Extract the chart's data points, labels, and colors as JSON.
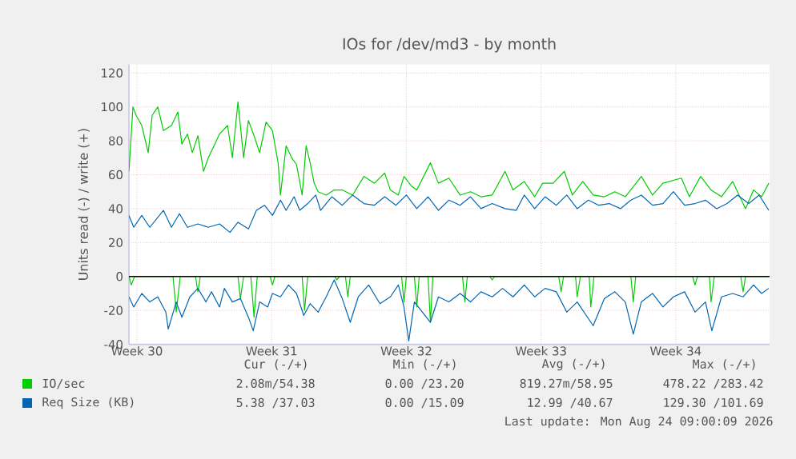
{
  "chart_data": {
    "type": "line",
    "title": "IOs for /dev/md3 - by month",
    "ylabel": "Units read (-) / write (+)",
    "xlim": [
      "2026-07-21T00:00",
      "2026-08-23T07:00"
    ],
    "ylim": [
      -40,
      125
    ],
    "xticks": [
      {
        "value": "2026-07-21T10:00",
        "label": "Week 30"
      },
      {
        "value": "2026-07-28T10:00",
        "label": "Week 31"
      },
      {
        "value": "2026-08-04T10:00",
        "label": "Week 32"
      },
      {
        "value": "2026-08-11T10:00",
        "label": "Week 33"
      },
      {
        "value": "2026-08-18T10:00",
        "label": "Week 34"
      }
    ],
    "yticks": [
      -40,
      -20,
      0,
      20,
      40,
      60,
      80,
      100,
      120
    ],
    "grid": true,
    "legend": "bottom",
    "line_style": "solid",
    "ref_lines": [
      {
        "axis": "y",
        "value": 0,
        "color": "#000000"
      }
    ],
    "series": [
      {
        "name": "IO/sec",
        "color": "#00cc00",
        "x": [
          "2026-07-21T00:00",
          "2026-07-21T05:00",
          "2026-07-21T09:00",
          "2026-07-21T16:00",
          "2026-07-22T00:00",
          "2026-07-22T05:00",
          "2026-07-22T12:00",
          "2026-07-22T19:00",
          "2026-07-23T05:00",
          "2026-07-23T13:00",
          "2026-07-23T18:00",
          "2026-07-24T01:00",
          "2026-07-24T07:00",
          "2026-07-24T14:00",
          "2026-07-24T21:00",
          "2026-07-25T03:00",
          "2026-07-25T10:00",
          "2026-07-25T17:00",
          "2026-07-26T03:00",
          "2026-07-26T09:00",
          "2026-07-26T16:00",
          "2026-07-26T23:00",
          "2026-07-27T05:00",
          "2026-07-27T12:00",
          "2026-07-27T19:00",
          "2026-07-28T03:00",
          "2026-07-28T11:00",
          "2026-07-28T18:00",
          "2026-07-28T21:00",
          "2026-07-29T04:00",
          "2026-07-29T11:00",
          "2026-07-29T17:00",
          "2026-07-30T00:00",
          "2026-07-30T05:00",
          "2026-07-30T10:00",
          "2026-07-30T15:00",
          "2026-07-30T20:00",
          "2026-07-31T06:00",
          "2026-07-31T16:00",
          "2026-08-01T02:00",
          "2026-08-01T15:00",
          "2026-08-02T05:00",
          "2026-08-02T18:00",
          "2026-08-03T07:00",
          "2026-08-03T14:00",
          "2026-08-04T00:00",
          "2026-08-04T07:00",
          "2026-08-04T17:00",
          "2026-08-04T23:00",
          "2026-08-05T16:00",
          "2026-08-06T02:00",
          "2026-08-06T15:00",
          "2026-08-07T05:00",
          "2026-08-07T18:00",
          "2026-08-08T07:00",
          "2026-08-08T21:00",
          "2026-08-09T13:00",
          "2026-08-09T23:00",
          "2026-08-10T13:00",
          "2026-08-11T02:00",
          "2026-08-11T12:00",
          "2026-08-12T01:00",
          "2026-08-12T15:00",
          "2026-08-13T01:00",
          "2026-08-13T14:00",
          "2026-08-14T03:00",
          "2026-08-14T17:00",
          "2026-08-15T06:00",
          "2026-08-15T19:00",
          "2026-08-16T15:00",
          "2026-08-17T05:00",
          "2026-08-17T18:00",
          "2026-08-18T17:00",
          "2026-08-19T03:00",
          "2026-08-19T17:00",
          "2026-08-20T06:00",
          "2026-08-20T19:00",
          "2026-08-21T09:00",
          "2026-08-22T01:00",
          "2026-08-22T11:00",
          "2026-08-22T21:00",
          "2026-08-23T06:00"
        ],
        "values": [
          62,
          100,
          95,
          89,
          73,
          95,
          100,
          86,
          89,
          97,
          78,
          84,
          73,
          83,
          62,
          70,
          77,
          84,
          89,
          70,
          103,
          70,
          92,
          83,
          73,
          91,
          86,
          67,
          48,
          77,
          70,
          66,
          48,
          77,
          67,
          55,
          50,
          48,
          51,
          51,
          48,
          59,
          55,
          61,
          51,
          48,
          59,
          53,
          51,
          67,
          55,
          58,
          48,
          50,
          47,
          48,
          62,
          51,
          56,
          47,
          55,
          55,
          62,
          48,
          56,
          48,
          47,
          50,
          47,
          59,
          48,
          55,
          58,
          47,
          59,
          51,
          47,
          56,
          40,
          51,
          47,
          55
        ]
      },
      {
        "color": "#00cc00",
        "x": [
          "2026-07-21T00:00",
          "2026-07-21T03:00",
          "2026-07-21T07:00",
          "2026-07-23T07:00",
          "2026-07-23T11:00",
          "2026-07-23T16:00",
          "2026-07-24T11:00",
          "2026-07-24T14:00",
          "2026-07-24T17:00",
          "2026-07-26T16:00",
          "2026-07-26T19:00",
          "2026-07-26T23:00",
          "2026-07-27T08:00",
          "2026-07-27T12:00",
          "2026-07-27T16:00",
          "2026-07-28T08:00",
          "2026-07-28T11:00",
          "2026-07-28T14:00",
          "2026-07-30T00:00",
          "2026-07-30T03:00",
          "2026-07-30T07:00",
          "2026-07-31T17:00",
          "2026-07-31T19:00",
          "2026-07-31T23:00",
          "2026-08-01T06:00",
          "2026-08-01T09:00",
          "2026-08-01T12:00",
          "2026-08-04T04:00",
          "2026-08-04T07:00",
          "2026-08-04T10:00",
          "2026-08-04T20:00",
          "2026-08-04T23:00",
          "2026-08-05T02:00",
          "2026-08-05T13:00",
          "2026-08-05T16:00",
          "2026-08-05T19:00",
          "2026-08-07T08:00",
          "2026-08-07T11:00",
          "2026-08-07T14:00",
          "2026-08-08T18:00",
          "2026-08-08T21:00",
          "2026-08-09T00:00",
          "2026-08-12T08:00",
          "2026-08-12T11:00",
          "2026-08-12T14:00",
          "2026-08-13T05:00",
          "2026-08-13T07:00",
          "2026-08-13T11:00",
          "2026-08-13T22:00",
          "2026-08-14T00:00",
          "2026-08-14T04:00",
          "2026-08-16T02:00",
          "2026-08-16T05:00",
          "2026-08-16T08:00",
          "2026-08-19T07:00",
          "2026-08-19T10:00",
          "2026-08-19T13:00",
          "2026-08-20T04:00",
          "2026-08-20T06:00",
          "2026-08-20T10:00",
          "2026-08-21T19:00",
          "2026-08-21T22:00",
          "2026-08-22T01:00",
          "2026-08-23T06:00"
        ],
        "values": [
          0,
          -5,
          0,
          0,
          -21,
          0,
          0,
          -9,
          0,
          0,
          -13,
          0,
          0,
          -24,
          0,
          0,
          -5,
          0,
          0,
          -20,
          0,
          0,
          -2,
          0,
          0,
          -12,
          0,
          0,
          -15,
          0,
          0,
          -18,
          0,
          0,
          -27,
          0,
          0,
          -15,
          0,
          0,
          -2,
          0,
          0,
          -9,
          0,
          0,
          -12,
          0,
          0,
          -18,
          0,
          0,
          -15,
          0,
          0,
          -5,
          0,
          0,
          -15,
          0,
          0,
          -9,
          0,
          0
        ]
      },
      {
        "name": "Req Size (KB)",
        "color": "#0066b3",
        "x": [
          "2026-07-21T00:00",
          "2026-07-21T06:00",
          "2026-07-21T16:00",
          "2026-07-22T02:00",
          "2026-07-22T19:00",
          "2026-07-23T05:00",
          "2026-07-23T15:00",
          "2026-07-24T01:00",
          "2026-07-24T14:00",
          "2026-07-25T03:00",
          "2026-07-25T17:00",
          "2026-07-26T06:00",
          "2026-07-26T16:00",
          "2026-07-27T05:00",
          "2026-07-27T15:00",
          "2026-07-28T01:00",
          "2026-07-28T11:00",
          "2026-07-28T21:00",
          "2026-07-29T04:00",
          "2026-07-29T14:00",
          "2026-07-29T21:00",
          "2026-07-30T07:00",
          "2026-07-30T17:00",
          "2026-07-30T23:00",
          "2026-07-31T13:00",
          "2026-08-01T02:00",
          "2026-08-01T15:00",
          "2026-08-02T05:00",
          "2026-08-02T18:00",
          "2026-08-03T07:00",
          "2026-08-03T21:00",
          "2026-08-04T10:00",
          "2026-08-04T23:00",
          "2026-08-05T13:00",
          "2026-08-06T02:00",
          "2026-08-06T15:00",
          "2026-08-07T05:00",
          "2026-08-07T18:00",
          "2026-08-08T07:00",
          "2026-08-08T21:00",
          "2026-08-09T13:00",
          "2026-08-10T03:00",
          "2026-08-10T13:00",
          "2026-08-11T02:00",
          "2026-08-11T15:00",
          "2026-08-12T05:00",
          "2026-08-12T18:00",
          "2026-08-13T07:00",
          "2026-08-13T21:00",
          "2026-08-14T10:00",
          "2026-08-14T23:00",
          "2026-08-15T13:00",
          "2026-08-16T02:00",
          "2026-08-16T15:00",
          "2026-08-17T05:00",
          "2026-08-17T18:00",
          "2026-08-18T07:00",
          "2026-08-18T21:00",
          "2026-08-19T10:00",
          "2026-08-19T23:00",
          "2026-08-20T13:00",
          "2026-08-21T02:00",
          "2026-08-21T15:00",
          "2026-08-22T05:00",
          "2026-08-22T18:00",
          "2026-08-23T06:00"
        ],
        "values": [
          36,
          29,
          36,
          29,
          39,
          29,
          37,
          29,
          31,
          29,
          31,
          26,
          32,
          28,
          39,
          42,
          36,
          45,
          39,
          47,
          39,
          43,
          48,
          39,
          47,
          42,
          48,
          43,
          42,
          47,
          42,
          48,
          40,
          47,
          39,
          45,
          42,
          47,
          40,
          43,
          40,
          39,
          48,
          40,
          47,
          42,
          48,
          40,
          45,
          42,
          43,
          40,
          45,
          48,
          42,
          43,
          50,
          42,
          43,
          45,
          40,
          43,
          48,
          43,
          48,
          39
        ]
      },
      {
        "color": "#0066b3",
        "x": [
          "2026-07-21T00:00",
          "2026-07-21T06:00",
          "2026-07-21T16:00",
          "2026-07-22T02:00",
          "2026-07-22T12:00",
          "2026-07-22T22:00",
          "2026-07-23T01:00",
          "2026-07-23T11:00",
          "2026-07-23T18:00",
          "2026-07-24T04:00",
          "2026-07-24T14:00",
          "2026-07-25T00:00",
          "2026-07-25T07:00",
          "2026-07-25T17:00",
          "2026-07-25T23:00",
          "2026-07-26T09:00",
          "2026-07-26T19:00",
          "2026-07-27T05:00",
          "2026-07-27T11:00",
          "2026-07-27T19:00",
          "2026-07-28T05:00",
          "2026-07-28T11:00",
          "2026-07-28T21:00",
          "2026-07-29T07:00",
          "2026-07-29T17:00",
          "2026-07-30T02:00",
          "2026-07-30T10:00",
          "2026-07-30T20:00",
          "2026-07-31T06:00",
          "2026-07-31T16:00",
          "2026-08-01T02:00",
          "2026-08-01T12:00",
          "2026-08-01T22:00",
          "2026-08-02T11:00",
          "2026-08-03T01:00",
          "2026-08-03T14:00",
          "2026-08-04T00:00",
          "2026-08-04T07:00",
          "2026-08-04T13:00",
          "2026-08-04T20:00",
          "2026-08-05T06:00",
          "2026-08-05T16:00",
          "2026-08-06T02:00",
          "2026-08-06T15:00",
          "2026-08-07T05:00",
          "2026-08-07T18:00",
          "2026-08-08T07:00",
          "2026-08-08T21:00",
          "2026-08-09T10:00",
          "2026-08-09T23:00",
          "2026-08-10T13:00",
          "2026-08-11T02:00",
          "2026-08-11T15:00",
          "2026-08-12T05:00",
          "2026-08-12T18:00",
          "2026-08-13T07:00",
          "2026-08-14T03:00",
          "2026-08-14T17:00",
          "2026-08-15T06:00",
          "2026-08-15T19:00",
          "2026-08-16T05:00",
          "2026-08-16T15:00",
          "2026-08-17T05:00",
          "2026-08-17T18:00",
          "2026-08-18T07:00",
          "2026-08-18T21:00",
          "2026-08-19T10:00",
          "2026-08-19T23:00",
          "2026-08-20T07:00",
          "2026-08-20T19:00",
          "2026-08-21T09:00",
          "2026-08-21T22:00",
          "2026-08-22T11:00",
          "2026-08-22T21:00",
          "2026-08-23T06:00"
        ],
        "values": [
          -12,
          -18,
          -10,
          -15,
          -12,
          -21,
          -31,
          -15,
          -24,
          -12,
          -7,
          -15,
          -9,
          -18,
          -7,
          -15,
          -13,
          -24,
          -32,
          -15,
          -18,
          -10,
          -12,
          -5,
          -10,
          -23,
          -16,
          -21,
          -12,
          -2,
          -13,
          -27,
          -12,
          -5,
          -16,
          -12,
          -5,
          -18,
          -38,
          -15,
          -21,
          -27,
          -12,
          -15,
          -10,
          -15,
          -9,
          -12,
          -7,
          -12,
          -5,
          -12,
          -7,
          -9,
          -21,
          -15,
          -29,
          -13,
          -9,
          -15,
          -34,
          -15,
          -10,
          -18,
          -12,
          -9,
          -21,
          -15,
          -32,
          -12,
          -10,
          -12,
          -5,
          -10,
          -7
        ]
      }
    ],
    "annotations": [
      "Cur (-/+)",
      "Min (-/+)",
      "Avg (-/+)",
      "Max (-/+)",
      "2.08m/54.38",
      "0.00 /23.20",
      "819.27m/58.95",
      "478.22 /283.42",
      "5.38 /37.03",
      "0.00 /15.09",
      "12.99 /40.67",
      "129.30 /101.69",
      "Last update: Mon Aug 24 09:00:09 2026"
    ]
  }
}
